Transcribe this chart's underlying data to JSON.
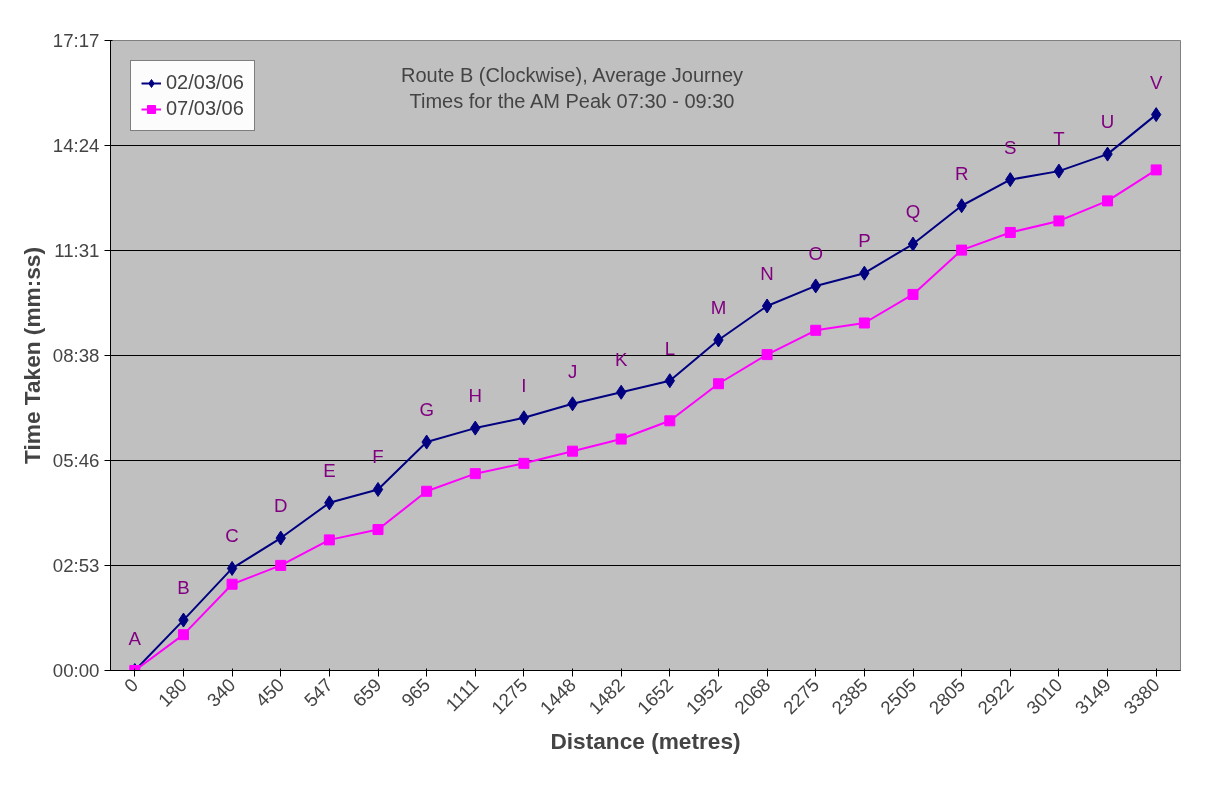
{
  "chart_data": {
    "type": "line",
    "title": "Route B (Clockwise), Average Journey Times for the AM Peak 07:30 - 09:30",
    "xlabel": "Distance (metres)",
    "ylabel": "Time Taken (mm:ss)",
    "categories": [
      "0",
      "180",
      "340",
      "450",
      "547",
      "659",
      "965",
      "1111",
      "1275",
      "1448",
      "1482",
      "1652",
      "1952",
      "2068",
      "2275",
      "2385",
      "2505",
      "2805",
      "2922",
      "3010",
      "3149",
      "3380"
    ],
    "series": [
      {
        "name": "02/03/06",
        "color": "#000080",
        "marker": "diamond",
        "values": [
          0,
          83,
          168,
          218,
          276,
          298,
          376,
          399,
          416,
          439,
          458,
          477,
          544,
          600,
          633,
          654,
          702,
          765,
          808,
          822,
          850,
          915
        ]
      },
      {
        "name": "07/03/06",
        "color": "#ff00ff",
        "marker": "square",
        "values": [
          0,
          59,
          142,
          173,
          215,
          232,
          295,
          324,
          341,
          361,
          381,
          411,
          472,
          520,
          560,
          572,
          619,
          692,
          721,
          740,
          773,
          824
        ]
      }
    ],
    "ylim": [
      0,
      1037
    ],
    "yticks": [
      {
        "value": 0,
        "label": "00:00"
      },
      {
        "value": 173,
        "label": "02:53"
      },
      {
        "value": 346,
        "label": "05:46"
      },
      {
        "value": 518,
        "label": "08:38"
      },
      {
        "value": 691,
        "label": "11:31"
      },
      {
        "value": 864,
        "label": "14:24"
      },
      {
        "value": 1037,
        "label": "17:17"
      }
    ],
    "grid": "y",
    "legend": "top left",
    "line_style": "solid",
    "annotations": [
      {
        "text": "A",
        "x": "0",
        "y": 0
      },
      {
        "text": "B",
        "x": "180",
        "y": 83
      },
      {
        "text": "C",
        "x": "340",
        "y": 168
      },
      {
        "text": "D",
        "x": "450",
        "y": 218
      },
      {
        "text": "E",
        "x": "547",
        "y": 276
      },
      {
        "text": "F",
        "x": "659",
        "y": 298
      },
      {
        "text": "G",
        "x": "965",
        "y": 376
      },
      {
        "text": "H",
        "x": "1111",
        "y": 399
      },
      {
        "text": "I",
        "x": "1275",
        "y": 416
      },
      {
        "text": "J",
        "x": "1448",
        "y": 439
      },
      {
        "text": "K",
        "x": "1482",
        "y": 458
      },
      {
        "text": "L",
        "x": "1652",
        "y": 477
      },
      {
        "text": "M",
        "x": "1952",
        "y": 544
      },
      {
        "text": "N",
        "x": "2068",
        "y": 600
      },
      {
        "text": "O",
        "x": "2275",
        "y": 633
      },
      {
        "text": "P",
        "x": "2385",
        "y": 654
      },
      {
        "text": "Q",
        "x": "2505",
        "y": 702
      },
      {
        "text": "R",
        "x": "2805",
        "y": 765
      },
      {
        "text": "S",
        "x": "2922",
        "y": 808
      },
      {
        "text": "T",
        "x": "3010",
        "y": 822
      },
      {
        "text": "U",
        "x": "3149",
        "y": 850
      },
      {
        "text": "V",
        "x": "3380",
        "y": 915
      }
    ]
  }
}
